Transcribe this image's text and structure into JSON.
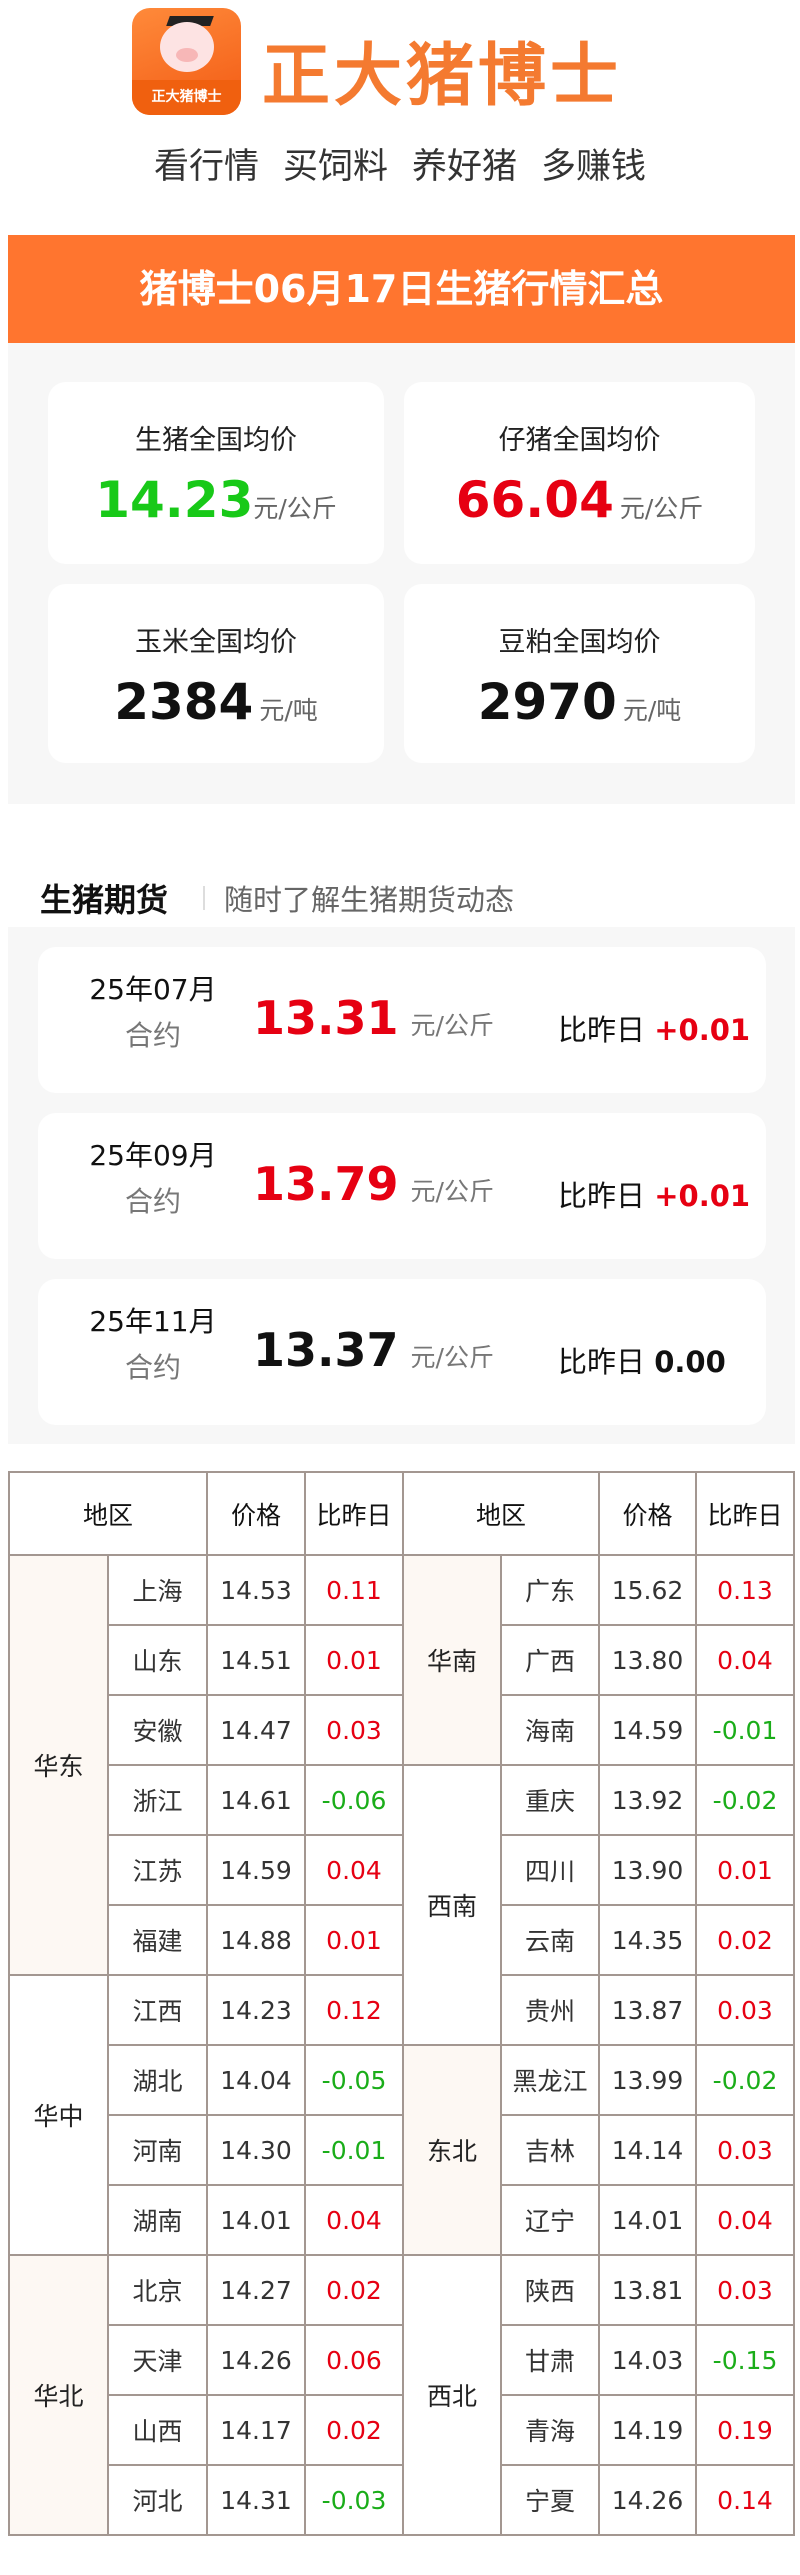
{
  "brand": {
    "name": "正大猪博士",
    "logo_text": "正大猪博士",
    "slogans": [
      "看行情",
      "买饲料",
      "养好猪",
      "多赚钱"
    ]
  },
  "banner": {
    "title": "猪博士06月17日生猪行情汇总"
  },
  "summary": [
    {
      "label": "生猪全国均价",
      "value": "14.23",
      "unit": "元/公斤",
      "color": "#18c918"
    },
    {
      "label": "仔猪全国均价",
      "value": "66.04",
      "unit": "元/公斤",
      "color": "#e60012"
    },
    {
      "label": "玉米全国均价",
      "value": "2384",
      "unit": "元/吨",
      "color": "#111111"
    },
    {
      "label": "豆粕全国均价",
      "value": "2970",
      "unit": "元/吨",
      "color": "#111111"
    }
  ],
  "futures": {
    "title": "生猪期货",
    "subtitle": "随时了解生猪期货动态",
    "items": [
      {
        "month": "25年07月",
        "sub": "合约",
        "price": "13.31",
        "unit": "元/公斤",
        "cmp_label": "比昨日",
        "change": "+0.01",
        "color": "#e60012"
      },
      {
        "month": "25年09月",
        "sub": "合约",
        "price": "13.79",
        "unit": "元/公斤",
        "cmp_label": "比昨日",
        "change": "+0.01",
        "color": "#e60012"
      },
      {
        "month": "25年11月",
        "sub": "合约",
        "price": "13.37",
        "unit": "元/公斤",
        "cmp_label": "比昨日",
        "change": "0.00",
        "color": "#111111"
      }
    ]
  },
  "table": {
    "headers": {
      "region": "地区",
      "price": "价格",
      "change": "比昨日"
    },
    "left": [
      {
        "region": "华东",
        "rows": [
          [
            "上海",
            "14.53",
            "0.11"
          ],
          [
            "山东",
            "14.51",
            "0.01"
          ],
          [
            "安徽",
            "14.47",
            "0.03"
          ],
          [
            "浙江",
            "14.61",
            "-0.06"
          ],
          [
            "江苏",
            "14.59",
            "0.04"
          ],
          [
            "福建",
            "14.88",
            "0.01"
          ]
        ]
      },
      {
        "region": "华中",
        "rows": [
          [
            "江西",
            "14.23",
            "0.12"
          ],
          [
            "湖北",
            "14.04",
            "-0.05"
          ],
          [
            "河南",
            "14.30",
            "-0.01"
          ],
          [
            "湖南",
            "14.01",
            "0.04"
          ]
        ]
      },
      {
        "region": "华北",
        "rows": [
          [
            "北京",
            "14.27",
            "0.02"
          ],
          [
            "天津",
            "14.26",
            "0.06"
          ],
          [
            "山西",
            "14.17",
            "0.02"
          ],
          [
            "河北",
            "14.31",
            "-0.03"
          ]
        ]
      }
    ],
    "right": [
      {
        "region": "华南",
        "rows": [
          [
            "广东",
            "15.62",
            "0.13"
          ],
          [
            "广西",
            "13.80",
            "0.04"
          ],
          [
            "海南",
            "14.59",
            "-0.01"
          ]
        ]
      },
      {
        "region": "西南",
        "rows": [
          [
            "重庆",
            "13.92",
            "-0.02"
          ],
          [
            "四川",
            "13.90",
            "0.01"
          ],
          [
            "云南",
            "14.35",
            "0.02"
          ],
          [
            "贵州",
            "13.87",
            "0.03"
          ]
        ]
      },
      {
        "region": "东北",
        "rows": [
          [
            "黑龙江",
            "13.99",
            "-0.02"
          ],
          [
            "吉林",
            "14.14",
            "0.03"
          ],
          [
            "辽宁",
            "14.01",
            "0.04"
          ]
        ]
      },
      {
        "region": "西北",
        "rows": [
          [
            "陕西",
            "13.81",
            "0.03"
          ],
          [
            "甘肃",
            "14.03",
            "-0.15"
          ],
          [
            "青海",
            "14.19",
            "0.19"
          ],
          [
            "宁夏",
            "14.26",
            "0.14"
          ]
        ]
      }
    ]
  }
}
